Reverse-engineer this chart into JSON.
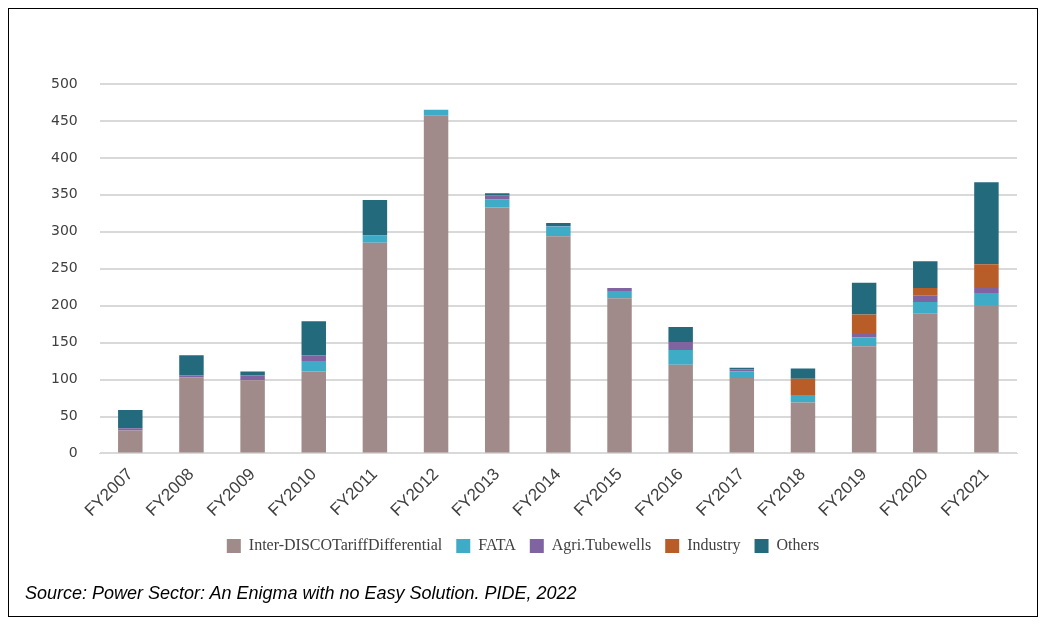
{
  "chart_data": {
    "type": "bar",
    "stacked": true,
    "categories": [
      "FY2007",
      "FY2008",
      "FY2009",
      "FY2010",
      "FY2011",
      "FY2012",
      "FY2013",
      "FY2014",
      "FY2015",
      "FY2016",
      "FY2017",
      "FY2018",
      "FY2019",
      "FY2020",
      "FY2021"
    ],
    "series": [
      {
        "name": "Inter-DISCOTariffDifferential",
        "color": "#a08a8a",
        "values": [
          31,
          103,
          99,
          111,
          285,
          457,
          333,
          294,
          210,
          120,
          102,
          69,
          145,
          189,
          201
        ]
      },
      {
        "name": "FATA",
        "color": "#3eacc6",
        "values": [
          0,
          0,
          0,
          14,
          10,
          8,
          11,
          13,
          10,
          20,
          9,
          10,
          12,
          16,
          16
        ]
      },
      {
        "name": "Agri.Tubewells",
        "color": "#8064a2",
        "values": [
          3,
          3,
          7,
          8,
          0,
          0,
          5,
          1,
          4,
          11,
          3,
          0,
          6,
          9,
          7
        ]
      },
      {
        "name": "Industry",
        "color": "#b85c28",
        "values": [
          0,
          0,
          0,
          0,
          0,
          0,
          0,
          0,
          0,
          0,
          0,
          22,
          25,
          10,
          32
        ]
      },
      {
        "name": "Others",
        "color": "#236b7c",
        "values": [
          25,
          27,
          5,
          46,
          48,
          0,
          3,
          4,
          0,
          20,
          2,
          14,
          43,
          36,
          111
        ]
      }
    ],
    "ylim": [
      0,
      500
    ],
    "yticks": [
      0,
      50,
      100,
      150,
      200,
      250,
      300,
      350,
      400,
      450,
      500
    ],
    "grid": "y",
    "legend": "bottom",
    "annotations": [
      "Source: Power Sector: An Enigma with no Easy Solution. PIDE, 2022"
    ]
  }
}
